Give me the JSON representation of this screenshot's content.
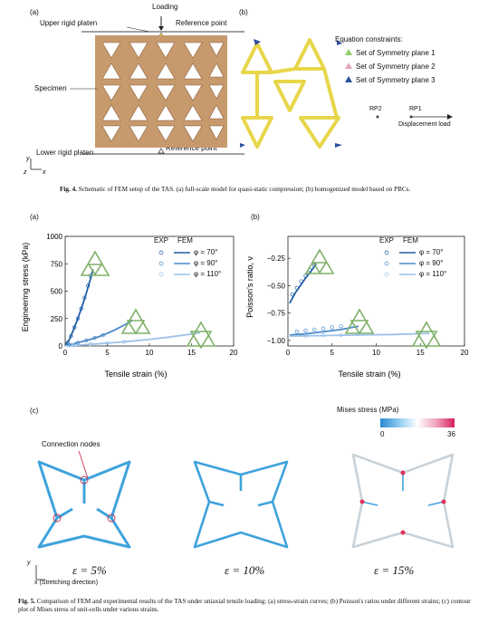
{
  "fig4": {
    "panel_a": "(a)",
    "panel_b": "(b)",
    "upper_platen": "Upper rigid platen",
    "loading": "Loading",
    "ref_point_top": "Reference point",
    "specimen": "Specimen",
    "lower_platen": "Lower rigid platen",
    "ref_point_bottom": "Reference point",
    "axis_y": "y",
    "axis_x": "x",
    "axis_z": "z",
    "eq_title": "Equation constraints:",
    "eq_items": [
      "Set of Symmetry plane 1",
      "Set of Symmetry plane 2",
      "Set of Symmetry plane 3"
    ],
    "rp2": "RP2",
    "rp1": "RP1",
    "disp": "Displacement load",
    "caption_label": "Fig. 4.",
    "caption": "Schematic of FEM setup of the TAS. (a) full-scale model for quasi-static compression; (b) homogenized model based on PBCs."
  },
  "fig5": {
    "panel_a": "(a)",
    "panel_b": "(b)",
    "panel_c": "(c)",
    "legend_exp": "EXP",
    "legend_fem": "FEM",
    "phi_labels": [
      "φ = 70°",
      "φ = 90°",
      "φ = 110°"
    ],
    "mises_title": "Mises stress (MPa)",
    "mises_min": "0",
    "mises_max": "36",
    "connection": "Connection nodes",
    "eps_labels": [
      "ε = 5%",
      "ε = 10%",
      "ε = 15%"
    ],
    "axis_y": "y",
    "stretch": "x (Stretching direction)",
    "caption_label": "Fig. 5.",
    "caption": "Comparison of FEM and experimental results of the TAS under uniaxial tensile loading: (a) stress-strain curves; (b) Poisson's ratios under different strains; (c) contour plot of Mises stress of unit-cells under various strains."
  },
  "colors": {
    "phi70": "#1f5fa8",
    "phi90": "#4a8ac9",
    "phi110": "#9cc3e8",
    "plaque": "#b9875a",
    "homog": "#e8d64a"
  },
  "chart_data": [
    {
      "type": "line",
      "xlabel": "Tensile strain (%)",
      "ylabel": "Engineering stress (kPa)",
      "xlim": [
        0,
        20
      ],
      "ylim": [
        0,
        1000
      ],
      "xticks": [
        0,
        5,
        10,
        15,
        20
      ],
      "yticks": [
        0,
        250,
        500,
        750,
        1000
      ],
      "series": [
        {
          "name": "φ = 70°",
          "kind": "FEM",
          "x": [
            0,
            0.5,
            1,
            1.5,
            2,
            2.5,
            3,
            3.3
          ],
          "y": [
            0,
            60,
            150,
            250,
            360,
            480,
            610,
            700
          ]
        },
        {
          "name": "φ = 90°",
          "kind": "FEM",
          "x": [
            0,
            1,
            2,
            3,
            4,
            5,
            6,
            7,
            8
          ],
          "y": [
            0,
            20,
            40,
            60,
            85,
            115,
            150,
            190,
            235
          ]
        },
        {
          "name": "φ = 110°",
          "kind": "FEM",
          "x": [
            0,
            2,
            4,
            6,
            8,
            10,
            12,
            14,
            16
          ],
          "y": [
            0,
            10,
            20,
            32,
            45,
            60,
            78,
            98,
            120
          ]
        },
        {
          "name": "φ = 70°",
          "kind": "EXP",
          "x": [
            0.3,
            0.7,
            1.1,
            1.5,
            1.9,
            2.3,
            2.7,
            3.0
          ],
          "y": [
            30,
            90,
            170,
            250,
            340,
            440,
            550,
            640
          ]
        },
        {
          "name": "φ = 90°",
          "kind": "EXP",
          "x": [
            0.5,
            1.5,
            2.5,
            3.5,
            4.5
          ],
          "y": [
            10,
            30,
            50,
            72,
            98
          ]
        },
        {
          "name": "φ = 110°",
          "kind": "EXP",
          "x": [
            1,
            3,
            5,
            7
          ],
          "y": [
            5,
            15,
            26,
            38
          ]
        }
      ]
    },
    {
      "type": "line",
      "xlabel": "Tensile strain (%)",
      "ylabel": "Poisson's ratio, ν",
      "xlim": [
        0,
        20
      ],
      "ylim": [
        -1.05,
        -0.05
      ],
      "xticks": [
        0,
        5,
        10,
        15,
        20
      ],
      "yticks": [
        -1.0,
        -0.75,
        -0.5,
        -0.25
      ],
      "series": [
        {
          "name": "φ = 70°",
          "kind": "FEM",
          "x": [
            0.2,
            0.8,
            1.4,
            2.0,
            2.6,
            3.2
          ],
          "y": [
            -0.66,
            -0.57,
            -0.5,
            -0.43,
            -0.37,
            -0.3
          ]
        },
        {
          "name": "φ = 90°",
          "kind": "FEM",
          "x": [
            0.2,
            2,
            4,
            6,
            8
          ],
          "y": [
            -0.95,
            -0.94,
            -0.92,
            -0.9,
            -0.87
          ]
        },
        {
          "name": "φ = 110°",
          "kind": "FEM",
          "x": [
            0.2,
            4,
            8,
            12,
            16
          ],
          "y": [
            -0.96,
            -0.955,
            -0.95,
            -0.945,
            -0.935
          ]
        },
        {
          "name": "φ = 70°",
          "kind": "EXP",
          "x": [
            0.5,
            1.0,
            1.5,
            2.0,
            2.5,
            3.0
          ],
          "y": [
            -0.58,
            -0.52,
            -0.46,
            -0.41,
            -0.36,
            -0.31
          ]
        },
        {
          "name": "φ = 90°",
          "kind": "EXP",
          "x": [
            1,
            2,
            3,
            4,
            5,
            6
          ],
          "y": [
            -0.92,
            -0.91,
            -0.9,
            -0.89,
            -0.88,
            -0.87
          ]
        },
        {
          "name": "φ = 110°",
          "kind": "EXP",
          "x": [
            2,
            4,
            6,
            8
          ],
          "y": [
            -0.96,
            -0.95,
            -0.95,
            -0.94
          ]
        }
      ]
    }
  ]
}
